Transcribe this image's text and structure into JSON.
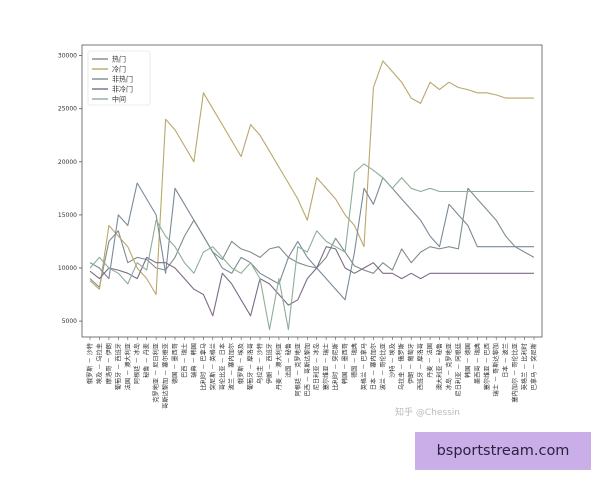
{
  "colors": {
    "hot": "#7f8c8d",
    "cold": "#b9a76c",
    "nonhot": "#7a8a99",
    "noncold": "#7d6b86",
    "medium": "#8fae98",
    "axis": "#555555",
    "background": "#ffffff",
    "banner_bg": "#c9aee8"
  },
  "watermark": "知乎 @Chessin",
  "banner": {
    "text": "bsportstream.com"
  },
  "chart_data": {
    "type": "line",
    "title": "",
    "xlabel": "",
    "ylabel": "",
    "ylim": [
      3500,
      31000
    ],
    "yticks": [
      5000,
      10000,
      15000,
      20000,
      25000,
      30000
    ],
    "legend_placement": "top-left",
    "categories": [
      "俄罗斯 － 沙特",
      "埃及 － 乌拉圭",
      "摩洛哥 － 伊朗",
      "葡萄牙 － 西班牙",
      "法国 － 澳大利亚",
      "阿根廷 － 冰岛",
      "秘鲁 － 丹麦",
      "克罗地亚 － 尼日利亚",
      "哥斯达黎加 － 塞尔维亚",
      "德国 － 墨西哥",
      "巴西 － 瑞士",
      "瑞典 － 韩国",
      "比利时 － 巴拿马",
      "突尼斯 － 英格兰",
      "哥伦比亚 － 日本",
      "波兰 － 塞内加尔",
      "俄罗斯 － 埃及",
      "葡萄牙 － 摩洛哥",
      "乌拉圭 － 沙特",
      "伊朗 － 西班牙",
      "丹麦 － 澳大利亚",
      "法国 － 秘鲁",
      "阿根廷 － 克罗地亚",
      "巴西 － 哥斯达黎加",
      "尼日利亚 － 冰岛",
      "塞尔维亚 － 瑞士",
      "比利时 － 突尼斯",
      "韩国 － 墨西哥",
      "德国 － 瑞典",
      "英格兰 － 巴拿马",
      "日本 － 塞内加尔",
      "波兰 － 哥伦比亚",
      "沙特 － 埃及",
      "乌拉圭 － 俄罗斯",
      "伊朗 － 葡萄牙",
      "西班牙 － 摩洛哥",
      "丹麦 － 法国",
      "澳大利亚 － 秘鲁",
      "冰岛 － 克罗地亚",
      "尼日利亚 － 阿根廷",
      "韩国 － 德国",
      "墨西哥 － 瑞典",
      "塞尔维亚 － 巴西",
      "瑞士 － 哥斯达黎加",
      "日本 － 波兰",
      "塞内加尔 － 哥伦比亚",
      "英格兰 － 比利时",
      "巴拿马 － 突尼斯"
    ],
    "series": [
      {
        "name": "热门",
        "color": "#7f8c8d",
        "values": [
          9000,
          8200,
          12500,
          13500,
          10500,
          11000,
          10800,
          10000,
          9800,
          11000,
          13000,
          14500,
          13000,
          11500,
          10800,
          12500,
          11800,
          11500,
          11000,
          11800,
          12000,
          11000,
          10500,
          10200,
          10000,
          11000,
          12800,
          11500,
          10200,
          9800,
          9500,
          10500,
          9800,
          11800,
          10500,
          11500,
          12000,
          11800,
          12000,
          11800,
          17500,
          16500,
          15500,
          14500,
          13000,
          12000,
          11500,
          11000
        ]
      },
      {
        "name": "冷门",
        "color": "#b9a76c",
        "values": [
          8800,
          8000,
          14000,
          13000,
          12000,
          10000,
          9000,
          7500,
          24000,
          23000,
          21500,
          20000,
          26500,
          25000,
          23500,
          22000,
          20500,
          23500,
          22500,
          21000,
          19500,
          18000,
          16500,
          14500,
          18500,
          17500,
          16500,
          15000,
          14000,
          12000,
          27000,
          29500,
          28500,
          27500,
          26000,
          25500,
          27500,
          26800,
          27500,
          27000,
          26800,
          26500,
          26500,
          26300,
          26000,
          26000,
          26000,
          26000
        ]
      },
      {
        "name": "非热门",
        "color": "#7a8a99",
        "values": [
          10500,
          10000,
          9000,
          15000,
          14000,
          18000,
          16500,
          15000,
          9500,
          17500,
          16000,
          14500,
          13000,
          11500,
          10000,
          9500,
          11000,
          10500,
          9500,
          9000,
          8500,
          11000,
          12500,
          11000,
          10000,
          9000,
          8000,
          7000,
          11500,
          17500,
          16000,
          18500,
          17500,
          16500,
          15500,
          14500,
          13000,
          12000,
          16000,
          15000,
          14000,
          12000,
          12000,
          12000,
          12000,
          12000,
          12000,
          12000
        ]
      },
      {
        "name": "非冷门",
        "color": "#7d6b86",
        "values": [
          9700,
          9000,
          10000,
          9800,
          9500,
          9000,
          11000,
          10500,
          10500,
          10000,
          9000,
          8000,
          7500,
          5500,
          9500,
          8500,
          7000,
          5500,
          9000,
          8500,
          7500,
          6500,
          7000,
          9000,
          10000,
          12000,
          11800,
          10000,
          9500,
          10000,
          10500,
          9500,
          9500,
          9000,
          9500,
          9000,
          9500,
          9500,
          9500,
          9500,
          9500,
          9500,
          9500,
          9500,
          9500,
          9500,
          9500,
          9500
        ]
      },
      {
        "name": "中间",
        "color": "#8fae98",
        "values": [
          10000,
          11000,
          10000,
          9500,
          8500,
          10500,
          9800,
          14500,
          13000,
          12000,
          10500,
          9500,
          11500,
          12000,
          11000,
          10000,
          9500,
          10500,
          9000,
          4200,
          9000,
          4200,
          12000,
          11500,
          13500,
          12500,
          12000,
          11500,
          19000,
          19800,
          19200,
          18500,
          17500,
          18500,
          17500,
          17200,
          17500,
          17200,
          17200,
          17200,
          17200,
          17200,
          17200,
          17200,
          17200,
          17200,
          17200,
          17200
        ]
      }
    ]
  }
}
